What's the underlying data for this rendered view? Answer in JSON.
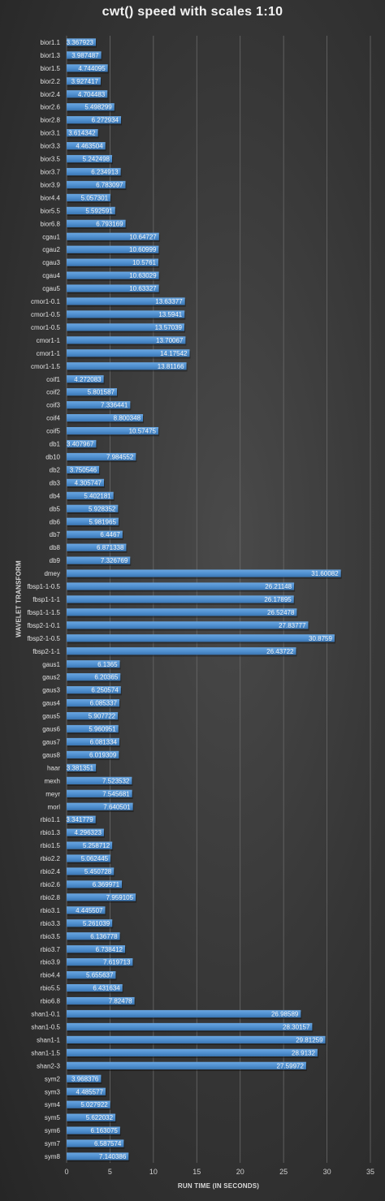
{
  "chart_data": {
    "type": "bar",
    "orientation": "horizontal",
    "title": "cwt() speed with scales 1:10",
    "xlabel": "RUN TIME (IN SECONDS)",
    "ylabel": "WAVELET TRANSFORM",
    "xlim": [
      0,
      35
    ],
    "xticks": [
      "0",
      "5",
      "10",
      "15",
      "20",
      "25",
      "30",
      "35"
    ],
    "grid": true,
    "legend": "none",
    "bar_color": "#4f8fcf",
    "categories": [
      "bior1.1",
      "bior1.3",
      "bior1.5",
      "bior2.2",
      "bior2.4",
      "bior2.6",
      "bior2.8",
      "bior3.1",
      "bior3.3",
      "bior3.5",
      "bior3.7",
      "bior3.9",
      "bior4.4",
      "bior5.5",
      "bior6.8",
      "cgau1",
      "cgau2",
      "cgau3",
      "cgau4",
      "cgau5",
      "cmor1-0.1",
      "cmor1-0.5",
      "cmor1-0.5",
      "cmor1-1",
      "cmor1-1",
      "cmor1-1.5",
      "coif1",
      "coif2",
      "coif3",
      "coif4",
      "coif5",
      "db1",
      "db10",
      "db2",
      "db3",
      "db4",
      "db5",
      "db6",
      "db7",
      "db8",
      "db9",
      "dmey",
      "fbsp1-1-0.5",
      "fbsp1-1-1",
      "fbsp1-1-1.5",
      "fbsp2-1-0.1",
      "fbsp2-1-0.5",
      "fbsp2-1-1",
      "gaus1",
      "gaus2",
      "gaus3",
      "gaus4",
      "gaus5",
      "gaus6",
      "gaus7",
      "gaus8",
      "haar",
      "mexh",
      "meyr",
      "morl",
      "rbio1.1",
      "rbio1.3",
      "rbio1.5",
      "rbio2.2",
      "rbio2.4",
      "rbio2.6",
      "rbio2.8",
      "rbio3.1",
      "rbio3.3",
      "rbio3.5",
      "rbio3.7",
      "rbio3.9",
      "rbio4.4",
      "rbio5.5",
      "rbio6.8",
      "shan1-0.1",
      "shan1-0.5",
      "shan1-1",
      "shan1-1.5",
      "shan2-3",
      "sym2",
      "sym3",
      "sym4",
      "sym5",
      "sym6",
      "sym7",
      "sym8"
    ],
    "values": [
      3.367923,
      3.987487,
      4.744095,
      3.927417,
      4.704483,
      5.498299,
      6.272934,
      3.614342,
      4.463504,
      5.242498,
      6.234913,
      6.783097,
      5.057301,
      5.592591,
      6.793169,
      10.64727,
      10.60999,
      10.5761,
      10.63029,
      10.63327,
      13.63377,
      13.5941,
      13.57039,
      13.70067,
      14.17542,
      13.81166,
      4.272083,
      5.801587,
      7.336441,
      8.800348,
      10.57475,
      3.407967,
      7.984552,
      3.750546,
      4.305747,
      5.402181,
      5.928352,
      5.981965,
      6.4467,
      6.871338,
      7.326769,
      31.60082,
      26.21148,
      26.17895,
      26.52478,
      27.83777,
      30.8759,
      26.43722,
      6.1365,
      6.20365,
      6.250574,
      6.085337,
      5.907722,
      5.960951,
      6.081334,
      6.019309,
      3.381351,
      7.523532,
      7.545681,
      7.640501,
      3.341779,
      4.296323,
      5.258712,
      5.062445,
      5.450728,
      6.369971,
      7.959105,
      4.445507,
      5.261039,
      6.136778,
      6.738412,
      7.619713,
      5.655637,
      6.431634,
      7.82478,
      26.98589,
      28.30157,
      29.81259,
      28.9132,
      27.59972,
      3.968376,
      4.485577,
      5.027922,
      5.622032,
      6.163075,
      6.587574,
      7.140386
    ],
    "value_labels": [
      "3.367923",
      "3.987487",
      "4.744095",
      "3.927417",
      "4.704483",
      "5.498299",
      "6.272934",
      "3.614342",
      "4.463504",
      "5.242498",
      "6.234913",
      "6.783097",
      "5.057301",
      "5.592591",
      "6.793169",
      "10.64727",
      "10.60999",
      "10.5761",
      "10.63029",
      "10.63327",
      "13.63377",
      "13.5941",
      "13.57039",
      "13.70067",
      "14.17542",
      "13.81166",
      "4.272083",
      "5.801587",
      "7.336441",
      "8.800348",
      "10.57475",
      "3.407967",
      "7.984552",
      "3.750546",
      "4.305747",
      "5.402181",
      "5.928352",
      "5.981965",
      "6.4467",
      "6.871338",
      "7.326769",
      "31.60082",
      "26.21148",
      "26.17895",
      "26.52478",
      "27.83777",
      "30.8759",
      "26.43722",
      "6.1365",
      "6.20365",
      "6.250574",
      "6.085337",
      "5.907722",
      "5.960951",
      "6.081334",
      "6.019309",
      "3.381351",
      "7.523532",
      "7.545681",
      "7.640501",
      "3.341779",
      "4.296323",
      "5.258712",
      "5.062445",
      "5.450728",
      "6.369971",
      "7.959105",
      "4.445507",
      "5.261039",
      "6.136778",
      "6.738412",
      "7.619713",
      "5.655637",
      "6.431634",
      "7.82478",
      "26.98589",
      "28.30157",
      "29.81259",
      "28.9132",
      "27.59972",
      "3.968376",
      "4.485577",
      "5.027922",
      "5.622032",
      "6.163075",
      "6.587574",
      "7.140386"
    ]
  }
}
